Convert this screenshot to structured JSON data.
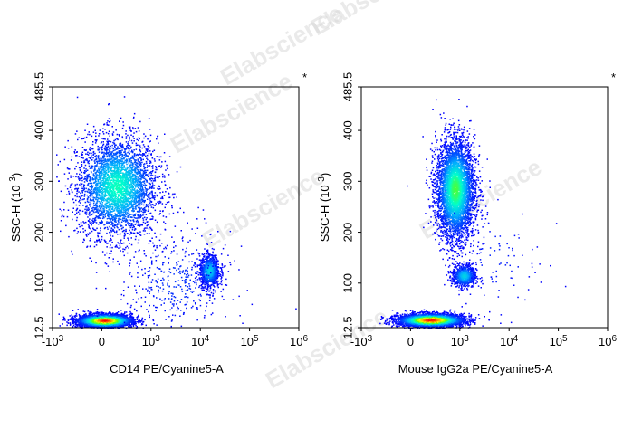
{
  "watermark": "Elabscience",
  "chart_data": [
    {
      "type": "scatter",
      "subtype": "flow-cytometry-density-dot-plot",
      "marker": "*",
      "xlabel": "CD14 PE/Cyanine5-A",
      "ylabel": "SSC-H (10^3)",
      "xscale": "biexponential",
      "xlim": [
        -1000,
        1000000
      ],
      "ylim": [
        12.5,
        485.5
      ],
      "xticks": [
        "-10^3",
        "0",
        "10^3",
        "10^4",
        "10^5",
        "10^6"
      ],
      "yticks": [
        "12.5",
        "100",
        "200",
        "300",
        "400",
        "485.5"
      ],
      "grid": false,
      "colormap": [
        "#0000ff",
        "#00aaff",
        "#00ffcc",
        "#66ff00",
        "#ffff00",
        "#ff8800",
        "#ff0000"
      ],
      "populations": [
        {
          "x_center": 300,
          "x_spread": 800,
          "y_center": 290,
          "y_spread": 110,
          "count": 3600,
          "peak_density": 0.35
        },
        {
          "x_center": 50,
          "x_spread": 500,
          "y_center": 27,
          "y_spread": 14,
          "count": 3800,
          "peak_density": 1.0
        },
        {
          "x_center": 15000,
          "x_spread": 8000,
          "y_center": 125,
          "y_spread": 35,
          "count": 900,
          "peak_density": 0.25
        },
        {
          "x_center": 3000,
          "x_spread": 30000,
          "y_center": 100,
          "y_spread": 120,
          "count": 450,
          "peak_density": 0.05
        }
      ]
    },
    {
      "type": "scatter",
      "subtype": "flow-cytometry-density-dot-plot",
      "marker": "*",
      "xlabel": "Mouse IgG2a PE/Cyanine5-A",
      "ylabel": "SSC-H (10^3)",
      "xscale": "biexponential",
      "xlim": [
        -1000,
        1000000
      ],
      "ylim": [
        12.5,
        485.5
      ],
      "xticks": [
        "-10^3",
        "0",
        "10^3",
        "10^4",
        "10^5",
        "10^6"
      ],
      "yticks": [
        "12.5",
        "100",
        "200",
        "300",
        "400",
        "485.5"
      ],
      "grid": false,
      "colormap": [
        "#0000ff",
        "#00aaff",
        "#00ffcc",
        "#66ff00",
        "#ffff00",
        "#ff8800",
        "#ff0000"
      ],
      "populations": [
        {
          "x_center": 900,
          "x_spread": 900,
          "y_center": 285,
          "y_spread": 110,
          "count": 4200,
          "peak_density": 0.45
        },
        {
          "x_center": 400,
          "x_spread": 600,
          "y_center": 28,
          "y_spread": 14,
          "count": 3800,
          "peak_density": 1.0
        },
        {
          "x_center": 1200,
          "x_spread": 800,
          "y_center": 115,
          "y_spread": 25,
          "count": 700,
          "peak_density": 0.25
        },
        {
          "x_center": 5000,
          "x_spread": 40000,
          "y_center": 150,
          "y_spread": 150,
          "count": 120,
          "peak_density": 0.03
        }
      ]
    }
  ]
}
